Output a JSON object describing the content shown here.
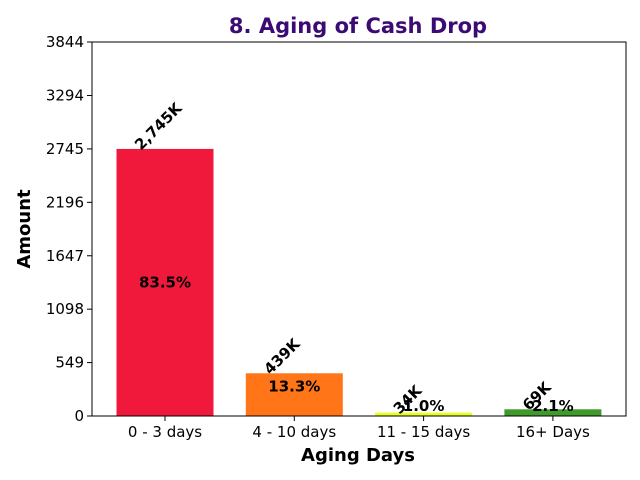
{
  "chart_data": {
    "type": "bar",
    "title": "8. Aging of Cash Drop",
    "title_color": "#3b0a73",
    "xlabel": "Aging Days",
    "ylabel": "Amount",
    "categories": [
      "0 - 3 days",
      "4 - 10 days",
      "11 - 15 days",
      "16+ Days"
    ],
    "values": [
      2745,
      439,
      34,
      69
    ],
    "value_labels": [
      "2,745K",
      "439K",
      "34K",
      "69K"
    ],
    "percent_labels": [
      "83.5%",
      "13.3%",
      "1.0%",
      "2.1%"
    ],
    "colors": [
      "#f0193c",
      "#ff7518",
      "#e5ff1f",
      "#3f9a2c"
    ],
    "ylim": [
      0,
      3844
    ],
    "yticks": [
      "0",
      "549",
      "1098",
      "1647",
      "2196",
      "2745",
      "3294",
      "3844"
    ],
    "grid": false
  }
}
